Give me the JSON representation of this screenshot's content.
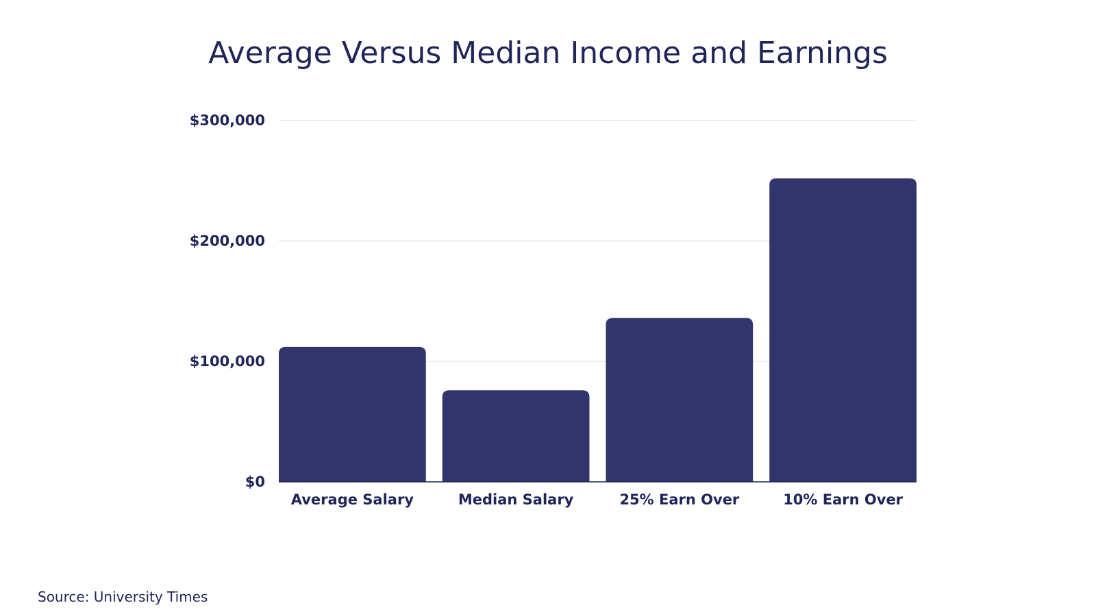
{
  "chart_data": {
    "type": "bar",
    "title": "Average Versus Median Income and Earnings",
    "categories": [
      "Average Salary",
      "Median Salary",
      "25% Earn Over",
      "10% Earn Over"
    ],
    "values": [
      112000,
      76000,
      136000,
      252000
    ],
    "xlabel": "",
    "ylabel": "",
    "ylim": [
      0,
      300000
    ],
    "yticks": [
      0,
      100000,
      200000,
      300000
    ],
    "ytick_labels": [
      "$0",
      "$100,000",
      "$200,000",
      "$300,000"
    ],
    "grid": true,
    "legend": "none",
    "bar_color": "#31356b",
    "gridline_color": "#dddddd",
    "text_color": "#1f2559"
  },
  "source": "Source: University Times"
}
